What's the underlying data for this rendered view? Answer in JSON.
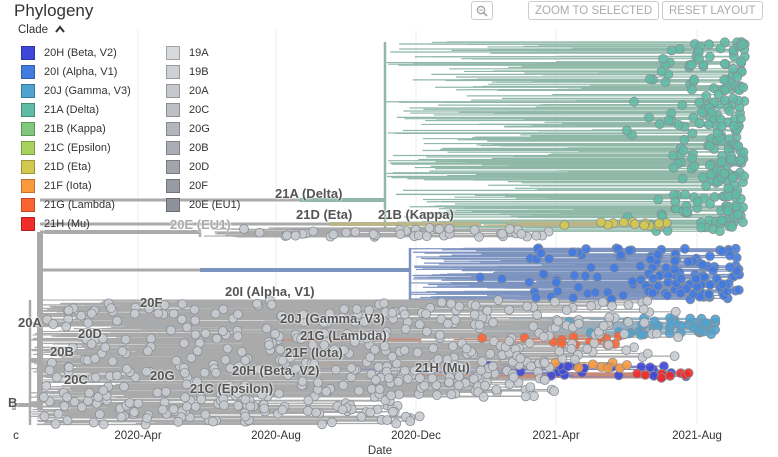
{
  "header": {
    "title": "Phylogeny",
    "zoom_out_icon": "zoom-out-icon",
    "zoom_selected_label": "ZOOM TO SELECTED",
    "reset_layout_label": "RESET LAYOUT"
  },
  "legend": {
    "title": "Clade",
    "toggle_icon": "chevron-up-icon",
    "col1": [
      {
        "label": "20H (Beta, V2)",
        "color": "#3f47d9"
      },
      {
        "label": "20I (Alpha, V1)",
        "color": "#437ae0"
      },
      {
        "label": "20J (Gamma, V3)",
        "color": "#4fa3cf"
      },
      {
        "label": "21A (Delta)",
        "color": "#5fbba5"
      },
      {
        "label": "21B (Kappa)",
        "color": "#80c97c"
      },
      {
        "label": "21C (Epsilon)",
        "color": "#a9d15d"
      },
      {
        "label": "21D (Eta)",
        "color": "#d4c94f"
      },
      {
        "label": "21F (Iota)",
        "color": "#fa9a3e"
      },
      {
        "label": "21G (Lambda)",
        "color": "#fb6432"
      },
      {
        "label": "21H (Mu)",
        "color": "#ef2b2b"
      }
    ],
    "col2": [
      {
        "label": "19A",
        "color": "#d6dadd"
      },
      {
        "label": "19B",
        "color": "#cdd1d5"
      },
      {
        "label": "20A",
        "color": "#c5c9ce"
      },
      {
        "label": "20C",
        "color": "#bcc0c5"
      },
      {
        "label": "20G",
        "color": "#b3b7bd"
      },
      {
        "label": "20B",
        "color": "#aaaeb4"
      },
      {
        "label": "20D",
        "color": "#a1a5ab"
      },
      {
        "label": "20F",
        "color": "#979ba2"
      },
      {
        "label": "20E (EU1)",
        "color": "#8d9199"
      }
    ]
  },
  "clade_labels": {
    "delta": "21A (Delta)",
    "eu1": "20E (EU1)",
    "eta": "21D (Eta)",
    "kappa": "21B (Kappa)",
    "alpha": "20I (Alpha, V1)",
    "f20": "20F",
    "gamma": "20J (Gamma, V3)",
    "lambda": "21G (Lambda)",
    "a20": "20A",
    "d20": "20D",
    "b20": "20B",
    "iota": "21F (Iota)",
    "epsilon": "21C (Epsilon)",
    "beta": "20H (Beta, V2)",
    "g20": "20G",
    "mu": "21H (Mu)",
    "c20": "20C",
    "b19": "B"
  },
  "axis": {
    "title": "Date",
    "ticks": [
      "c",
      "2020-Apr",
      "2020-Aug",
      "2020-Dec",
      "2021-Apr",
      "2021-Aug"
    ]
  }
}
